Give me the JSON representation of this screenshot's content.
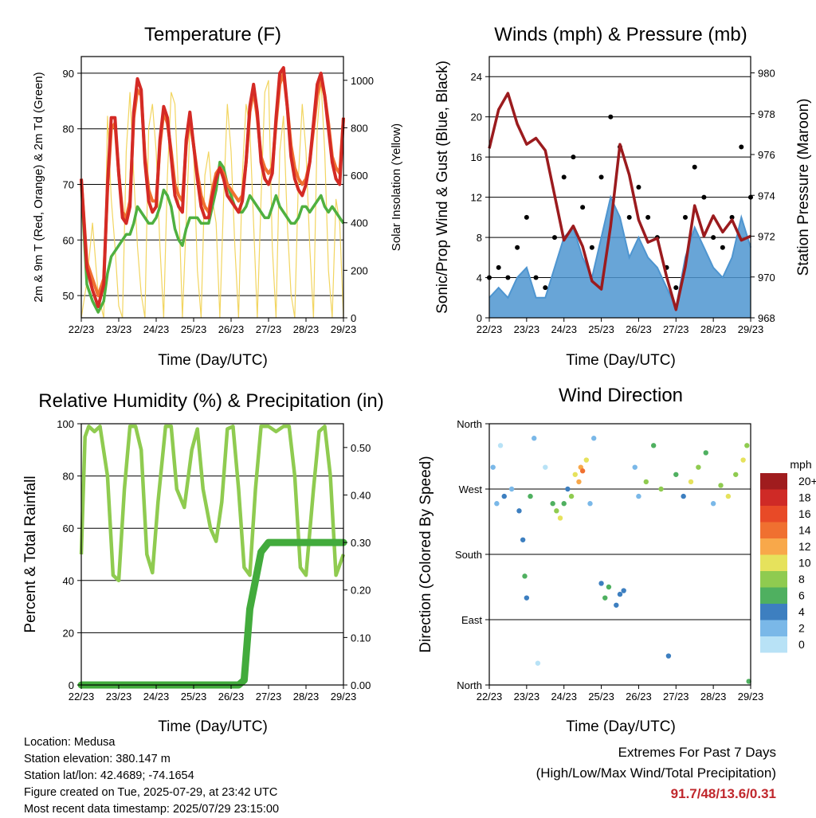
{
  "x_ticks": [
    "22/23",
    "23/23",
    "24/23",
    "25/23",
    "26/23",
    "27/23",
    "28/23",
    "29/23"
  ],
  "chart_data": [
    {
      "type": "line",
      "title": "Temperature (F)",
      "xlabel": "Time (Day/UTC)",
      "ylabel": "2m & 9m T (Red, Orange) & 2m Td (Green)",
      "ylabel_right": "Solar Insolation (Yellow)",
      "ylim": [
        46,
        93
      ],
      "ylim_right": [
        0,
        1100
      ],
      "yticks": [
        50,
        60,
        70,
        80,
        90
      ],
      "yticks_right": [
        0,
        200,
        400,
        600,
        800,
        1000
      ],
      "x": [
        0,
        0.15,
        0.3,
        0.45,
        0.6,
        0.7,
        0.8,
        0.9,
        1.0,
        1.1,
        1.2,
        1.3,
        1.4,
        1.5,
        1.6,
        1.7,
        1.8,
        1.9,
        2.0,
        2.1,
        2.2,
        2.3,
        2.4,
        2.5,
        2.6,
        2.7,
        2.8,
        2.9,
        3.0,
        3.1,
        3.2,
        3.3,
        3.4,
        3.5,
        3.6,
        3.7,
        3.8,
        3.9,
        4.0,
        4.1,
        4.2,
        4.3,
        4.4,
        4.5,
        4.6,
        4.7,
        4.8,
        4.9,
        5.0,
        5.1,
        5.2,
        5.3,
        5.4,
        5.5,
        5.6,
        5.7,
        5.8,
        5.9,
        6.0,
        6.1,
        6.2,
        6.3,
        6.4,
        6.5,
        6.6,
        6.7,
        6.8,
        6.9,
        7.0
      ],
      "series": [
        {
          "name": "2m T",
          "color": "#d42a25",
          "values": [
            71,
            55,
            51,
            48,
            52,
            70,
            82,
            82,
            72,
            64,
            63,
            66,
            83,
            89,
            87,
            74,
            67,
            65,
            66,
            78,
            84,
            82,
            75,
            68,
            66,
            65,
            78,
            83,
            77,
            71,
            66,
            64,
            64,
            68,
            71,
            73,
            71,
            68,
            67,
            66,
            65,
            67,
            74,
            84,
            88,
            83,
            74,
            71,
            70,
            72,
            82,
            90,
            91,
            84,
            75,
            71,
            69,
            68,
            70,
            74,
            81,
            88,
            90,
            86,
            80,
            74,
            71,
            70,
            82
          ]
        },
        {
          "name": "9m T",
          "color": "#f07030",
          "values": [
            71,
            56,
            53,
            50,
            53,
            69,
            80,
            81,
            72,
            65,
            64,
            67,
            82,
            87,
            86,
            75,
            69,
            67,
            67,
            77,
            83,
            81,
            76,
            70,
            68,
            67,
            77,
            82,
            77,
            72,
            68,
            66,
            65,
            69,
            72,
            73,
            72,
            70,
            69,
            68,
            67,
            68,
            74,
            83,
            87,
            82,
            75,
            73,
            72,
            73,
            81,
            88,
            90,
            84,
            77,
            73,
            71,
            70,
            71,
            74,
            80,
            86,
            89,
            86,
            81,
            75,
            73,
            72,
            82
          ]
        },
        {
          "name": "2m Td",
          "color": "#4fb040",
          "values": [
            70,
            52,
            49,
            47,
            49,
            54,
            57,
            58,
            59,
            60,
            61,
            61,
            63,
            66,
            65,
            64,
            63,
            63,
            64,
            66,
            69,
            68,
            66,
            62,
            60,
            59,
            62,
            64,
            64,
            64,
            63,
            63,
            63,
            66,
            69,
            74,
            73,
            70,
            68,
            66,
            65,
            65,
            66,
            68,
            67,
            66,
            65,
            64,
            64,
            66,
            68,
            66,
            65,
            64,
            63,
            63,
            64,
            66,
            66,
            65,
            66,
            67,
            68,
            66,
            65,
            66,
            65,
            64,
            63
          ]
        },
        {
          "name": "Solar Insolation",
          "color": "#f2d560",
          "values": [
            0,
            150,
            400,
            100,
            0,
            850,
            500,
            300,
            50,
            0,
            700,
            950,
            600,
            300,
            100,
            0,
            800,
            900,
            700,
            300,
            0,
            600,
            950,
            900,
            500,
            0,
            400,
            800,
            700,
            200,
            0,
            600,
            700,
            500,
            400,
            0,
            500,
            900,
            700,
            300,
            0,
            600,
            900,
            800,
            400,
            0,
            500,
            950,
            1000,
            300,
            0,
            700,
            850,
            400,
            100,
            0,
            600,
            900,
            700,
            300,
            0,
            800,
            1000,
            700,
            200,
            0,
            500,
            400,
            0
          ]
        }
      ]
    },
    {
      "type": "line",
      "title": "Winds (mph) & Pressure (mb)",
      "xlabel": "Time (Day/UTC)",
      "ylabel": "Sonic/Prop Wind & Gust (Blue, Black)",
      "ylabel_right": "Station Pressure (Maroon)",
      "ylim": [
        0,
        26
      ],
      "ylim_right": [
        968,
        980.8
      ],
      "yticks": [
        0,
        4,
        8,
        12,
        16,
        20,
        24
      ],
      "yticks_right": [
        968,
        970,
        972,
        974,
        976,
        978,
        980
      ],
      "x": [
        0,
        0.25,
        0.5,
        0.75,
        1.0,
        1.25,
        1.5,
        1.75,
        2.0,
        2.25,
        2.5,
        2.75,
        3.0,
        3.25,
        3.5,
        3.75,
        4.0,
        4.25,
        4.5,
        4.75,
        5.0,
        5.25,
        5.5,
        5.75,
        6.0,
        6.25,
        6.5,
        6.75,
        7.0
      ],
      "series": [
        {
          "name": "Wind",
          "color": "#4e95d0",
          "values": [
            2,
            3,
            2,
            4,
            5,
            2,
            2,
            5,
            8,
            9,
            6,
            4,
            8,
            12,
            10,
            6,
            8,
            6,
            5,
            3,
            1,
            6,
            9,
            7,
            5,
            4,
            6,
            10,
            7
          ]
        },
        {
          "name": "Gust",
          "color": "#000000",
          "values": [
            4,
            5,
            4,
            7,
            10,
            4,
            3,
            8,
            14,
            16,
            11,
            7,
            14,
            20,
            17,
            10,
            13,
            10,
            8,
            5,
            3,
            10,
            15,
            12,
            8,
            7,
            10,
            17,
            12
          ]
        },
        {
          "name": "Station Pressure",
          "color": "#9b1b1e",
          "values": [
            976.3,
            978.2,
            979.0,
            977.5,
            976.5,
            976.8,
            976.2,
            974.0,
            971.8,
            972.5,
            971.5,
            969.8,
            969.4,
            972.5,
            976.5,
            975.0,
            972.8,
            971.7,
            971.9,
            970.0,
            968.4,
            970.5,
            973.5,
            972.0,
            973.0,
            972.2,
            972.8,
            971.8,
            972.0
          ]
        }
      ]
    },
    {
      "type": "line",
      "title": "Relative Humidity (%) & Precipitation (in)",
      "xlabel": "Time (Day/UTC)",
      "ylabel": "Percent & Total Rainfall",
      "ylim": [
        0,
        100
      ],
      "ylim_right": [
        0,
        0.55
      ],
      "yticks": [
        0,
        20,
        40,
        60,
        80,
        100
      ],
      "yticks_right": [
        "0.00",
        "0.10",
        "0.20",
        "0.30",
        "0.40",
        "0.50"
      ],
      "x": [
        0,
        0.1,
        0.2,
        0.35,
        0.5,
        0.7,
        0.85,
        1.0,
        1.15,
        1.3,
        1.45,
        1.6,
        1.75,
        1.9,
        2.05,
        2.25,
        2.4,
        2.55,
        2.75,
        2.95,
        3.1,
        3.25,
        3.45,
        3.6,
        3.75,
        3.9,
        4.05,
        4.2,
        4.35,
        4.5,
        4.65,
        4.8,
        5.0,
        5.2,
        5.4,
        5.55,
        5.7,
        5.85,
        6.0,
        6.2,
        6.35,
        6.5,
        6.65,
        6.8,
        7.0
      ],
      "series": [
        {
          "name": "Relative Humidity",
          "color": "#8fcb50",
          "values": [
            50,
            95,
            99,
            97,
            99,
            80,
            42,
            40,
            75,
            99,
            99,
            90,
            50,
            43,
            70,
            99,
            99,
            75,
            68,
            90,
            98,
            75,
            60,
            55,
            70,
            98,
            99,
            75,
            45,
            42,
            75,
            99,
            99,
            97,
            99,
            99,
            80,
            45,
            42,
            75,
            97,
            99,
            80,
            42,
            50
          ]
        },
        {
          "name": "Total Rainfall",
          "color": "#42ab3c",
          "values": [
            0,
            0,
            0,
            0,
            0,
            0,
            0,
            0,
            0,
            0,
            0,
            0,
            0,
            0,
            0,
            0,
            0,
            0,
            0,
            0,
            0,
            0,
            0,
            0,
            0,
            0,
            0,
            0,
            0.01,
            0.16,
            0.22,
            0.28,
            0.3,
            0.3,
            0.3,
            0.3,
            0.3,
            0.3,
            0.3,
            0.3,
            0.3,
            0.3,
            0.3,
            0.3,
            0.3
          ]
        }
      ]
    },
    {
      "type": "scatter",
      "title": "Wind Direction",
      "xlabel": "Time (Day/UTC)",
      "ylabel": "Direction (Colored By Speed)",
      "yticks": [
        "North",
        "East",
        "South",
        "West",
        "North"
      ],
      "legend_title": "mph",
      "legend_labels": [
        "20+",
        "18",
        "16",
        "14",
        "12",
        "10",
        "8",
        "6",
        "4",
        "2",
        "0"
      ],
      "legend_colors": [
        "#a01c1e",
        "#cf2a26",
        "#e84a27",
        "#f07030",
        "#f8a84a",
        "#e6e25c",
        "#8fcb50",
        "#4fb060",
        "#3d7fc0",
        "#7ab8e8",
        "#b8e2f6"
      ],
      "points": [
        {
          "x": 0.1,
          "dir": 300,
          "spd": 2
        },
        {
          "x": 0.2,
          "dir": 250,
          "spd": 3
        },
        {
          "x": 0.3,
          "dir": 330,
          "spd": 1
        },
        {
          "x": 0.4,
          "dir": 260,
          "spd": 4
        },
        {
          "x": 0.6,
          "dir": 270,
          "spd": 3
        },
        {
          "x": 0.8,
          "dir": 240,
          "spd": 4
        },
        {
          "x": 0.9,
          "dir": 200,
          "spd": 5
        },
        {
          "x": 0.95,
          "dir": 150,
          "spd": 6
        },
        {
          "x": 1.0,
          "dir": 120,
          "spd": 4
        },
        {
          "x": 1.1,
          "dir": 260,
          "spd": 7
        },
        {
          "x": 1.2,
          "dir": 340,
          "spd": 2
        },
        {
          "x": 1.3,
          "dir": 30,
          "spd": 1
        },
        {
          "x": 1.5,
          "dir": 300,
          "spd": 1
        },
        {
          "x": 1.7,
          "dir": 250,
          "spd": 6
        },
        {
          "x": 1.8,
          "dir": 240,
          "spd": 9
        },
        {
          "x": 1.9,
          "dir": 230,
          "spd": 10
        },
        {
          "x": 2.0,
          "dir": 250,
          "spd": 7
        },
        {
          "x": 2.1,
          "dir": 270,
          "spd": 4
        },
        {
          "x": 2.2,
          "dir": 260,
          "spd": 8
        },
        {
          "x": 2.3,
          "dir": 290,
          "spd": 11
        },
        {
          "x": 2.4,
          "dir": 280,
          "spd": 13
        },
        {
          "x": 2.45,
          "dir": 300,
          "spd": 12
        },
        {
          "x": 2.5,
          "dir": 295,
          "spd": 14
        },
        {
          "x": 2.6,
          "dir": 310,
          "spd": 10
        },
        {
          "x": 2.7,
          "dir": 250,
          "spd": 3
        },
        {
          "x": 2.8,
          "dir": 340,
          "spd": 2
        },
        {
          "x": 3.0,
          "dir": 140,
          "spd": 5
        },
        {
          "x": 3.1,
          "dir": 120,
          "spd": 7
        },
        {
          "x": 3.2,
          "dir": 135,
          "spd": 6
        },
        {
          "x": 3.4,
          "dir": 110,
          "spd": 4
        },
        {
          "x": 3.5,
          "dir": 125,
          "spd": 5
        },
        {
          "x": 3.6,
          "dir": 130,
          "spd": 4
        },
        {
          "x": 3.9,
          "dir": 300,
          "spd": 2
        },
        {
          "x": 4.0,
          "dir": 260,
          "spd": 3
        },
        {
          "x": 4.2,
          "dir": 280,
          "spd": 8
        },
        {
          "x": 4.4,
          "dir": 330,
          "spd": 6
        },
        {
          "x": 4.6,
          "dir": 270,
          "spd": 9
        },
        {
          "x": 4.8,
          "dir": 40,
          "spd": 5
        },
        {
          "x": 5.0,
          "dir": 290,
          "spd": 7
        },
        {
          "x": 5.2,
          "dir": 260,
          "spd": 4
        },
        {
          "x": 5.4,
          "dir": 280,
          "spd": 10
        },
        {
          "x": 5.6,
          "dir": 300,
          "spd": 9
        },
        {
          "x": 5.8,
          "dir": 320,
          "spd": 6
        },
        {
          "x": 6.0,
          "dir": 250,
          "spd": 3
        },
        {
          "x": 6.2,
          "dir": 275,
          "spd": 8
        },
        {
          "x": 6.4,
          "dir": 260,
          "spd": 10
        },
        {
          "x": 6.6,
          "dir": 290,
          "spd": 9
        },
        {
          "x": 6.8,
          "dir": 310,
          "spd": 11
        },
        {
          "x": 6.9,
          "dir": 330,
          "spd": 8
        },
        {
          "x": 6.95,
          "dir": 5,
          "spd": 6
        }
      ]
    }
  ],
  "info": {
    "location": "Location: Medusa",
    "elevation": "Station elevation: 380.147 m",
    "latlon": "Station lat/lon: 42.4689; -74.1654",
    "created": "Figure created on Tue, 2025-07-29, at 23:42 UTC",
    "recent": "Most recent data timestamp: 2025/07/29 23:15:00"
  },
  "extremes": {
    "line1": "Extremes For Past 7 Days",
    "line2": "(High/Low/Max Wind/Total Precipitation)",
    "values": "91.7/48/13.6/0.31"
  }
}
